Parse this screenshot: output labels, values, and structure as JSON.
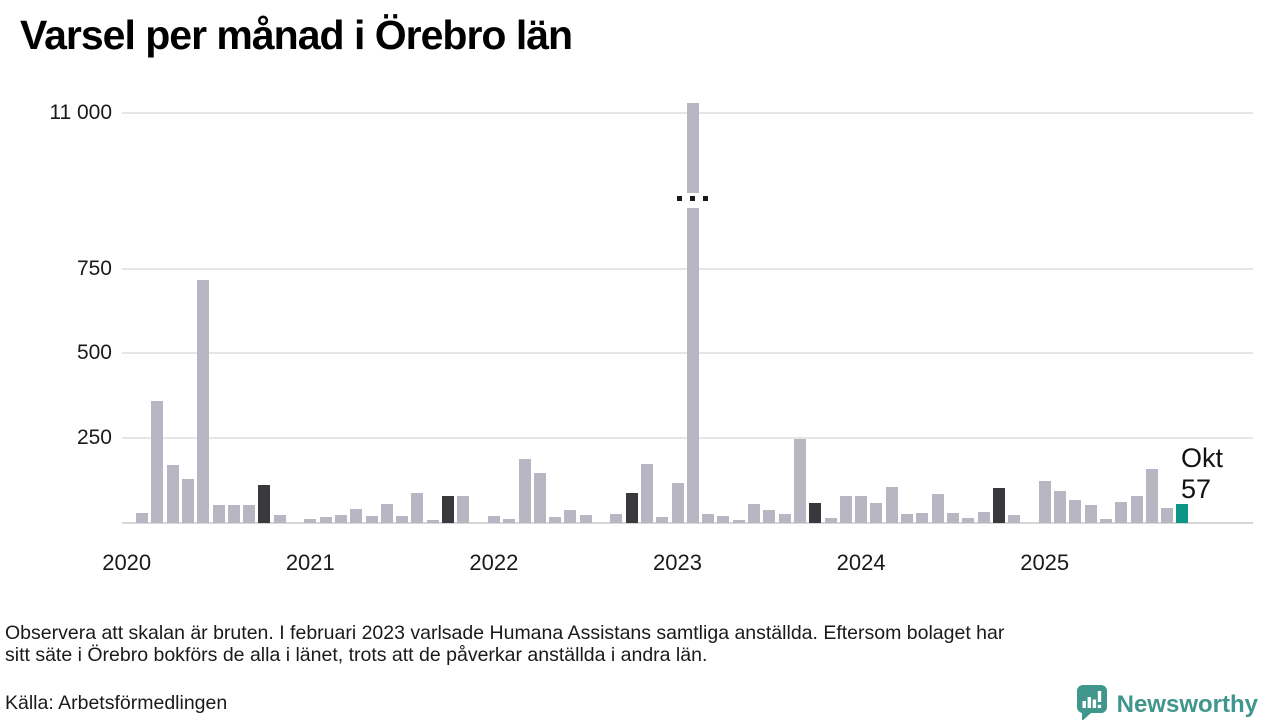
{
  "title": "Varsel per månad i Örebro län",
  "chart_data": {
    "type": "bar",
    "title": "Varsel per månad i Örebro län",
    "xlabel": "",
    "ylabel": "",
    "grid": "horizontal",
    "broken_axis": {
      "enabled": true,
      "break_above": 750,
      "upper_tick": 11000,
      "break_marker": "· · ·"
    },
    "y_ticks": [
      {
        "label": "11 000",
        "value": 11000
      },
      {
        "label": "750",
        "value": 750
      },
      {
        "label": "500",
        "value": 500
      },
      {
        "label": "250",
        "value": 250
      }
    ],
    "x_ticks": [
      "2020",
      "2021",
      "2022",
      "2023",
      "2024",
      "2025"
    ],
    "months": [
      "2020-01",
      "2020-02",
      "2020-03",
      "2020-04",
      "2020-05",
      "2020-06",
      "2020-07",
      "2020-08",
      "2020-09",
      "2020-10",
      "2020-11",
      "2020-12",
      "2021-01",
      "2021-02",
      "2021-03",
      "2021-04",
      "2021-05",
      "2021-06",
      "2021-07",
      "2021-08",
      "2021-09",
      "2021-10",
      "2021-11",
      "2021-12",
      "2022-01",
      "2022-02",
      "2022-03",
      "2022-04",
      "2022-05",
      "2022-06",
      "2022-07",
      "2022-08",
      "2022-09",
      "2022-10",
      "2022-11",
      "2022-12",
      "2023-01",
      "2023-02",
      "2023-03",
      "2023-04",
      "2023-05",
      "2023-06",
      "2023-07",
      "2023-08",
      "2023-09",
      "2023-10",
      "2023-11",
      "2023-12",
      "2024-01",
      "2024-02",
      "2024-03",
      "2024-04",
      "2024-05",
      "2024-06",
      "2024-07",
      "2024-08",
      "2024-09",
      "2024-10",
      "2024-11",
      "2024-12",
      "2025-01",
      "2025-02",
      "2025-03",
      "2025-04",
      "2025-05",
      "2025-06",
      "2025-07",
      "2025-08",
      "2025-09",
      "2025-10"
    ],
    "values": [
      0,
      30,
      360,
      170,
      130,
      715,
      53,
      53,
      53,
      113,
      24,
      0,
      12,
      18,
      24,
      41,
      21,
      56,
      20,
      88,
      8,
      80,
      80,
      0,
      21,
      13,
      188,
      147,
      18,
      38,
      24,
      0,
      26,
      88,
      174,
      18,
      118,
      11030,
      26,
      21,
      10,
      56,
      38,
      26,
      248,
      58,
      16,
      79,
      79,
      59,
      106,
      26,
      29,
      85,
      29,
      16,
      31,
      103,
      23,
      0,
      125,
      93,
      68,
      54,
      12,
      62,
      79,
      160,
      44,
      57
    ],
    "highlighted_month_of_year": 10,
    "current_month": "2025-10",
    "annotation": {
      "line1": "Okt",
      "line2": "57",
      "value": 57
    }
  },
  "colors": {
    "bar_default": "#b8b6c3",
    "bar_october": "#39393d",
    "bar_current": "#0d9686",
    "gridline": "#e6e6e6",
    "brand_teal": "#40968c"
  },
  "footer": {
    "note_line1": "Observera att skalan är bruten. I februari 2023 varlsade Humana Assistans samtliga anställda. Eftersom bolaget har",
    "note_line2": "sitt säte i Örebro bokförs de alla i länet, trots att de påverkar anställda i andra län.",
    "source": "Källa: Arbetsförmedlingen",
    "brand": "Newsworthy"
  }
}
